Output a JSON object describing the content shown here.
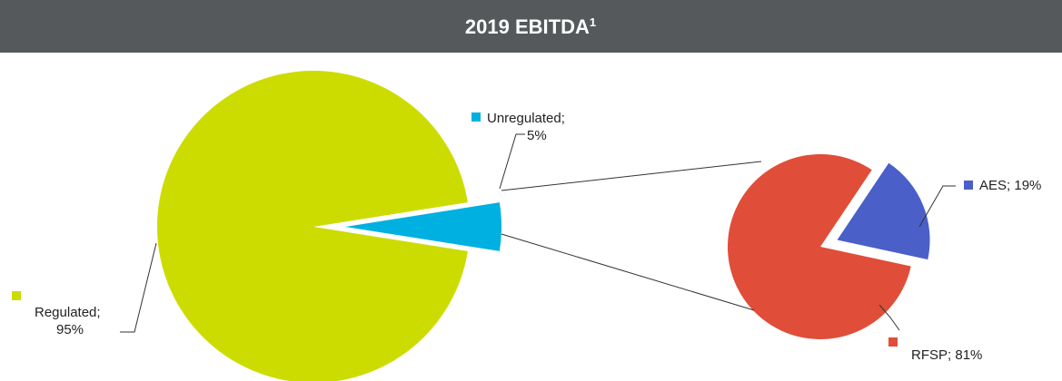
{
  "chart_data": [
    {
      "type": "pie",
      "title": "2019 EBITDA",
      "title_note": "1",
      "categories": [
        "Regulated;",
        "Unregulated;"
      ],
      "values": [
        95,
        5
      ],
      "value_labels": [
        "95%",
        "5%"
      ],
      "colors": [
        "#cddc00",
        "#00b0e0"
      ]
    },
    {
      "type": "pie",
      "categories": [
        "AES;",
        "RFSP;"
      ],
      "values": [
        19,
        81
      ],
      "value_labels": [
        "19%",
        "81%"
      ],
      "colors": [
        "#4a5fc8",
        "#e04e39"
      ]
    }
  ]
}
